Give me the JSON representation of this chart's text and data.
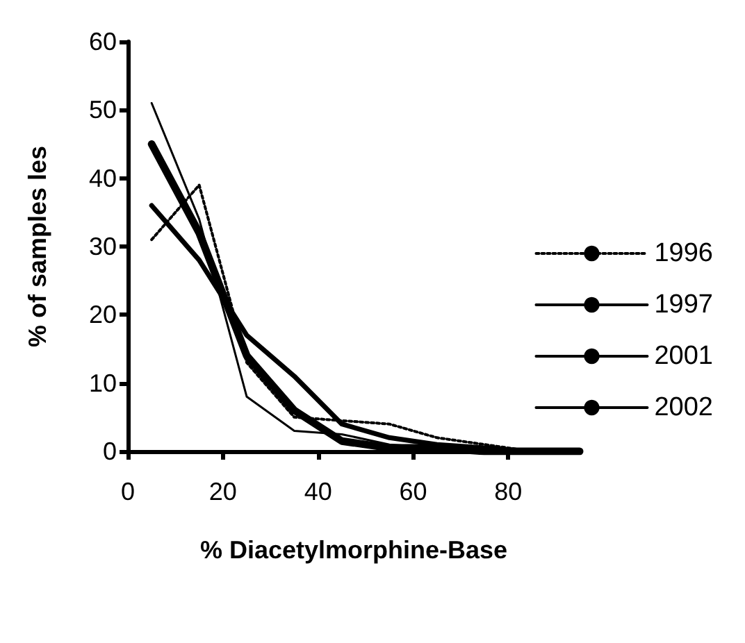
{
  "chart_data": {
    "type": "line",
    "xlabel": "% Diacetylmorphine-Base",
    "ylabel": "% of samples les",
    "x": [
      5,
      15,
      25,
      35,
      45,
      55,
      65,
      75,
      85,
      95
    ],
    "series": [
      {
        "name": "1996",
        "color": "#000000",
        "line_style": "dotted",
        "values": [
          31,
          39,
          13,
          5,
          4.5,
          4,
          2,
          1,
          0,
          0
        ]
      },
      {
        "name": "1997",
        "color": "#000000",
        "line_style": "solid",
        "values": [
          51,
          34,
          8,
          3,
          2.5,
          1,
          0.5,
          0.5,
          0,
          0
        ]
      },
      {
        "name": "2001",
        "color": "#000000",
        "line_style": "solid",
        "values": [
          36,
          28,
          17,
          11,
          4,
          2,
          1,
          0.5,
          0,
          0
        ]
      },
      {
        "name": "2002",
        "color": "#000000",
        "line_style": "solid",
        "values": [
          45,
          32,
          14,
          6,
          1.5,
          0.5,
          0.5,
          0,
          0,
          0
        ]
      }
    ],
    "xlim": [
      0,
      95
    ],
    "xticks": [
      0,
      20,
      40,
      60,
      80
    ],
    "ylim": [
      0,
      60
    ],
    "yticks": [
      0,
      10,
      20,
      30,
      40,
      50,
      60
    ],
    "grid": false,
    "legend": "right",
    "marker": "none"
  }
}
